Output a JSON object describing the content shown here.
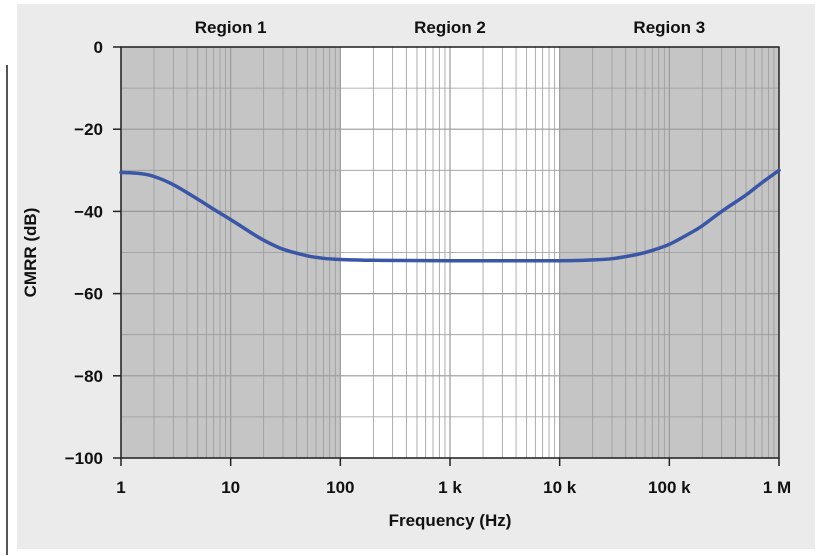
{
  "chart_data": {
    "type": "line",
    "xlabel": "Frequency (Hz)",
    "ylabel": "CMRR (dB)",
    "x_scale": "log",
    "xlim": [
      1,
      1000000
    ],
    "ylim": [
      -100,
      0
    ],
    "grid": true,
    "x_tick_labels": [
      {
        "value": 1,
        "label": "1"
      },
      {
        "value": 10,
        "label": "10"
      },
      {
        "value": 100,
        "label": "100"
      },
      {
        "value": 1000,
        "label": "1 k"
      },
      {
        "value": 10000,
        "label": "10 k"
      },
      {
        "value": 100000,
        "label": "100 k"
      },
      {
        "value": 1000000,
        "label": "1 M"
      }
    ],
    "y_tick_labels": [
      {
        "value": 0,
        "label": "0"
      },
      {
        "value": -20,
        "label": "−20"
      },
      {
        "value": -40,
        "label": "−40"
      },
      {
        "value": -60,
        "label": "−60"
      },
      {
        "value": -80,
        "label": "−80"
      },
      {
        "value": -100,
        "label": "−100"
      }
    ],
    "regions": [
      {
        "label": "Region 1",
        "from": 1,
        "to": 100,
        "shaded": true
      },
      {
        "label": "Region 2",
        "from": 100,
        "to": 10000,
        "shaded": false
      },
      {
        "label": "Region 3",
        "from": 10000,
        "to": 1000000,
        "shaded": true
      }
    ],
    "series": [
      {
        "color": "#3a56a4",
        "points": [
          [
            1,
            -30.5
          ],
          [
            1.5,
            -30.8
          ],
          [
            2,
            -31.5
          ],
          [
            3,
            -33.5
          ],
          [
            5,
            -37
          ],
          [
            7,
            -39.5
          ],
          [
            10,
            -42
          ],
          [
            15,
            -45
          ],
          [
            20,
            -47
          ],
          [
            30,
            -49.2
          ],
          [
            50,
            -50.8
          ],
          [
            70,
            -51.4
          ],
          [
            100,
            -51.7
          ],
          [
            200,
            -51.9
          ],
          [
            1000,
            -52
          ],
          [
            10000,
            -52
          ],
          [
            20000,
            -51.8
          ],
          [
            30000,
            -51.5
          ],
          [
            50000,
            -50.5
          ],
          [
            70000,
            -49.5
          ],
          [
            100000,
            -48
          ],
          [
            150000,
            -45.5
          ],
          [
            200000,
            -43.5
          ],
          [
            300000,
            -40
          ],
          [
            500000,
            -36
          ],
          [
            700000,
            -33
          ],
          [
            1000000,
            -30
          ]
        ]
      }
    ],
    "colors": {
      "panel_background": "#ebebeb",
      "region_shade": "#c5c5c5",
      "plot_background": "#ffffff",
      "grid_line": "#9a9a9a",
      "curve": "#3a56a4"
    }
  }
}
